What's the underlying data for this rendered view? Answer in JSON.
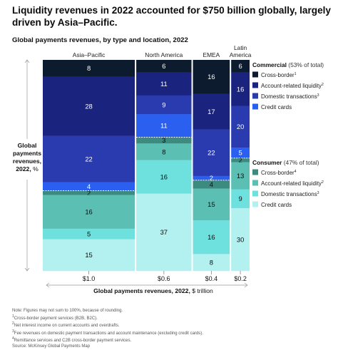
{
  "title": "Liquidity revenues in 2022 accounted for $750 billion globally, largely driven by Asia–Pacific.",
  "subtitle": "Global payments revenues, by type and location, 2022",
  "chart_data": {
    "type": "mekko",
    "y_axis_label": [
      "Global",
      "payments",
      "revenues,",
      "2022, %"
    ],
    "x_axis_label": "Global payments revenues, 2022, $ trillion",
    "regions": [
      {
        "name": [
          "Asia–Pacific"
        ],
        "revenue": 1.0,
        "revenue_label": "$1.0"
      },
      {
        "name": [
          "North America"
        ],
        "revenue": 0.6,
        "revenue_label": "$0.6"
      },
      {
        "name": [
          "EMEA"
        ],
        "revenue": 0.4,
        "revenue_label": "$0.4"
      },
      {
        "name": [
          "Latin",
          "America"
        ],
        "revenue": 0.2,
        "revenue_label": "$0.2"
      }
    ],
    "segments": [
      {
        "key": "commercial_cross_border",
        "name": "Cross-border",
        "sup": "1",
        "color": "#0d1b2e",
        "text": "#ffffff"
      },
      {
        "key": "commercial_account_liquidity",
        "name": "Account-related liquidity",
        "sup": "2",
        "color": "#1a237e",
        "text": "#ffffff"
      },
      {
        "key": "commercial_domestic",
        "name": "Domestic transactions",
        "sup": "3",
        "color": "#2a3bb0",
        "text": "#ffffff"
      },
      {
        "key": "commercial_credit_cards",
        "name": "Credit cards",
        "sup": "",
        "color": "#2b5ff0",
        "text": "#ffffff"
      },
      {
        "key": "consumer_cross_border",
        "name": "Cross-border",
        "sup": "4",
        "color": "#3d8a80",
        "text": "#0b0b0b"
      },
      {
        "key": "consumer_account_liquidity",
        "name": "Account-related liquidity",
        "sup": "2",
        "color": "#5cbfb3",
        "text": "#0b0b0b"
      },
      {
        "key": "consumer_domestic",
        "name": "Domestic transactions",
        "sup": "3",
        "color": "#6ee0de",
        "text": "#0b0b0b"
      },
      {
        "key": "consumer_credit_cards",
        "name": "Credit cards",
        "sup": "",
        "color": "#b3f0f0",
        "text": "#0b0b0b"
      }
    ],
    "values": [
      [
        8,
        28,
        22,
        4,
        2,
        16,
        5,
        15
      ],
      [
        6,
        11,
        9,
        11,
        3,
        8,
        16,
        37
      ],
      [
        16,
        17,
        22,
        2,
        4,
        15,
        16,
        8
      ],
      [
        6,
        16,
        20,
        5,
        2,
        13,
        9,
        30
      ]
    ],
    "legend": {
      "commercial": {
        "title": "Commercial",
        "share": "(53% of total)"
      },
      "consumer": {
        "title": "Consumer",
        "share": "(47% of total)"
      }
    }
  },
  "notes": [
    {
      "sup": "",
      "text": "Note: Figures may not sum to 100%, because of rounding."
    },
    {
      "sup": "1",
      "text": "Cross-border payment services (B2B, B2C)."
    },
    {
      "sup": "2",
      "text": "Net interest income on current accounts and overdrafts."
    },
    {
      "sup": "3",
      "text": "Fee revenues on domestic payment transactions and account maintenance (excluding credit cards)."
    },
    {
      "sup": "4",
      "text": "Remittance services and C2B cross-border payment services."
    },
    {
      "sup": "",
      "text": "Source: McKinsey Global Payments Map"
    }
  ]
}
